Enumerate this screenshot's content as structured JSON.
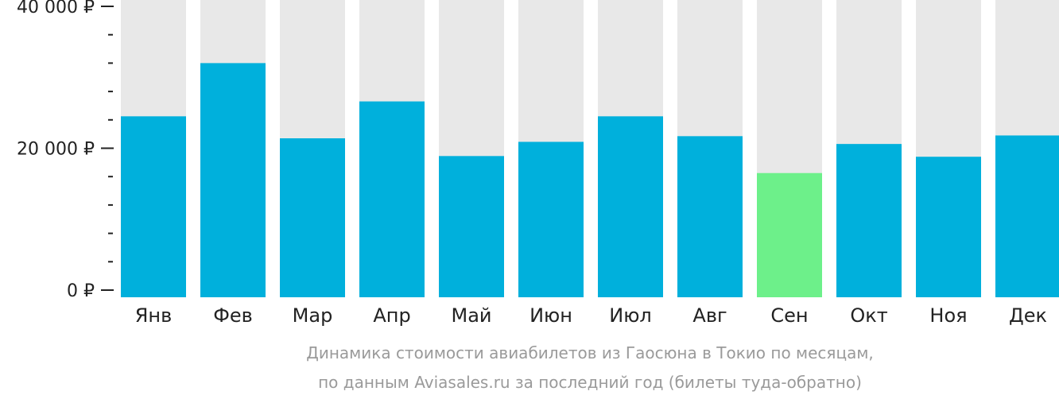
{
  "chart_data": {
    "type": "bar",
    "categories": [
      "Янв",
      "Фев",
      "Мар",
      "Апр",
      "Май",
      "Июн",
      "Июл",
      "Авг",
      "Сен",
      "Окт",
      "Ноя",
      "Дек"
    ],
    "values": [
      24500,
      32000,
      21400,
      26600,
      18900,
      20900,
      24500,
      21700,
      16500,
      20600,
      18800,
      21800
    ],
    "ylim": [
      0,
      40000
    ],
    "y_ticks": [
      {
        "value": 0,
        "label": "0 ₽"
      },
      {
        "value": 20000,
        "label": "20 000 ₽"
      },
      {
        "value": 40000,
        "label": "40 000 ₽"
      }
    ],
    "minor_tick_step": 4000,
    "highlight_index": 8,
    "caption_lines": [
      "Динамика стоимости авиабилетов из Гаосюна в Токио по месяцам,",
      "по данным Aviasales.ru за последний год (билеты туда-обратно)"
    ],
    "xlabel": "",
    "ylabel": "",
    "grid": false,
    "colors": {
      "bar": "#00b0dc",
      "highlight": "#6df08a",
      "background_bar": "#e8e8e8",
      "axis": "#222222",
      "caption": "#9a9a9a"
    }
  }
}
